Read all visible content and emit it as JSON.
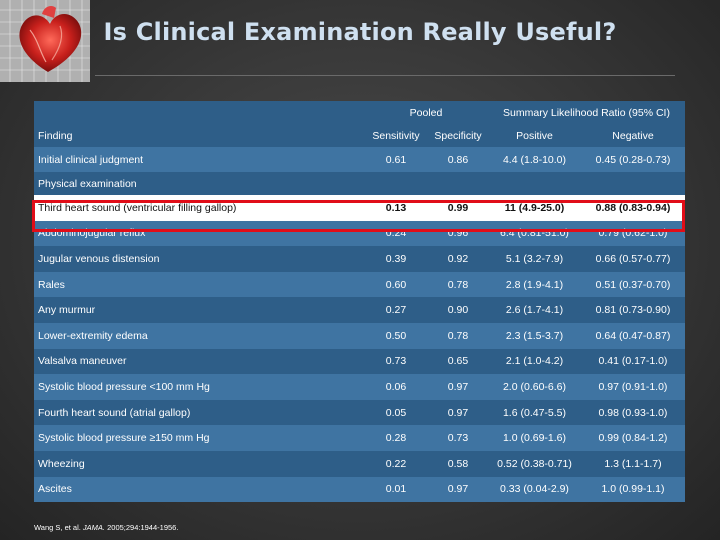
{
  "slide": {
    "title": "Is Clinical Examination Really Useful?"
  },
  "table": {
    "group_headers": {
      "pooled": "Pooled",
      "lr": "Summary Likelihood Ratio (95% CI)"
    },
    "columns": {
      "finding": "Finding",
      "sensitivity": "Sensitivity",
      "specificity": "Specificity",
      "positive": "Positive",
      "negative": "Negative"
    },
    "initial": {
      "finding": "Initial clinical judgment",
      "sensitivity": "0.61",
      "specificity": "0.86",
      "positive": "4.4 (1.8-10.0)",
      "negative": "0.45 (0.28-0.73)"
    },
    "section_label": "Physical examination",
    "rows": [
      {
        "finding": "Third heart sound (ventricular filling gallop)",
        "sensitivity": "0.13",
        "specificity": "0.99",
        "positive": "11 (4.9-25.0)",
        "negative": "0.88 (0.83-0.94)"
      },
      {
        "finding": "Abdominojugular reflux",
        "sensitivity": "0.24",
        "specificity": "0.96",
        "positive": "6.4 (0.81-51.0)",
        "negative": "0.79 (0.62-1.0)"
      },
      {
        "finding": "Jugular venous distension",
        "sensitivity": "0.39",
        "specificity": "0.92",
        "positive": "5.1 (3.2-7.9)",
        "negative": "0.66 (0.57-0.77)"
      },
      {
        "finding": "Rales",
        "sensitivity": "0.60",
        "specificity": "0.78",
        "positive": "2.8 (1.9-4.1)",
        "negative": "0.51 (0.37-0.70)"
      },
      {
        "finding": "Any murmur",
        "sensitivity": "0.27",
        "specificity": "0.90",
        "positive": "2.6 (1.7-4.1)",
        "negative": "0.81 (0.73-0.90)"
      },
      {
        "finding": "Lower-extremity edema",
        "sensitivity": "0.50",
        "specificity": "0.78",
        "positive": "2.3 (1.5-3.7)",
        "negative": "0.64 (0.47-0.87)"
      },
      {
        "finding": "Valsalva maneuver",
        "sensitivity": "0.73",
        "specificity": "0.65",
        "positive": "2.1 (1.0-4.2)",
        "negative": "0.41 (0.17-1.0)"
      },
      {
        "finding": "Systolic blood pressure <100 mm Hg",
        "sensitivity": "0.06",
        "specificity": "0.97",
        "positive": "2.0 (0.60-6.6)",
        "negative": "0.97 (0.91-1.0)"
      },
      {
        "finding": "Fourth heart sound (atrial gallop)",
        "sensitivity": "0.05",
        "specificity": "0.97",
        "positive": "1.6 (0.47-5.5)",
        "negative": "0.98 (0.93-1.0)"
      },
      {
        "finding": "Systolic blood pressure ≥150 mm Hg",
        "sensitivity": "0.28",
        "specificity": "0.73",
        "positive": "1.0 (0.69-1.6)",
        "negative": "0.99 (0.84-1.2)"
      },
      {
        "finding": "Wheezing",
        "sensitivity": "0.22",
        "specificity": "0.58",
        "positive": "0.52 (0.38-0.71)",
        "negative": "1.3 (1.1-1.7)"
      },
      {
        "finding": "Ascites",
        "sensitivity": "0.01",
        "specificity": "0.97",
        "positive": "0.33 (0.04-2.9)",
        "negative": "1.0 (0.99-1.1)"
      }
    ]
  },
  "citation": {
    "prefix": "Wang S, et al. ",
    "journal": "JAMA.",
    "suffix": " 2005;294:1944-1956."
  },
  "colors": {
    "table_header": "#2e5e88",
    "table_row_light": "#3f74a2",
    "highlight_border": "#e10d18",
    "title_text": "#cfe0f0"
  },
  "icons": {
    "corner_art": "heart-illustration"
  }
}
